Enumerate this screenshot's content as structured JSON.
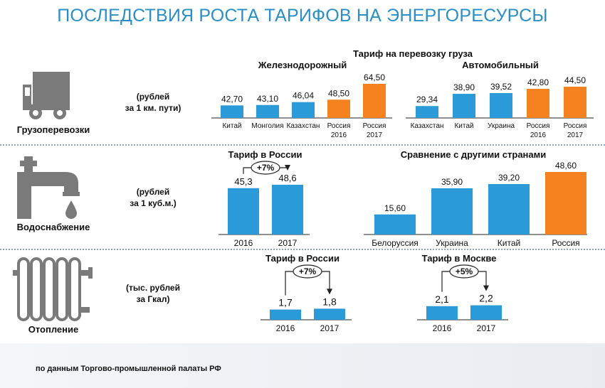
{
  "title": "ПОСЛЕДСТВИЯ РОСТА ТАРИФОВ НА ЭНЕРГОРЕСУРСЫ",
  "colors": {
    "blue": "#2a9ad8",
    "orange": "#f5821f",
    "title": "#2a8fc6",
    "icon": "#7a7a7a"
  },
  "source_note": "по данным Торгово-промышленной палаты РФ",
  "sections": {
    "freight": {
      "label": "Грузоперевозки",
      "unit": [
        "(рублей",
        "за 1 км. пути)"
      ],
      "icon": "truck-icon",
      "header": "Тариф на перевозку груза"
    },
    "water": {
      "label": "Водоснабжение",
      "unit": [
        "(рублей",
        "за 1 куб.м.)"
      ],
      "icon": "faucet-icon"
    },
    "heating": {
      "label": "Отопление",
      "unit": [
        "(тыс. рублей",
        "за Гкал)"
      ],
      "icon": "radiator-icon"
    }
  },
  "chart_data": [
    {
      "id": "rail",
      "type": "bar",
      "title": "Железнодорожный",
      "categories": [
        [
          "Китай"
        ],
        [
          "Монголия"
        ],
        [
          "Казахстан"
        ],
        [
          "Россия",
          "2016"
        ],
        [
          "Россия",
          "2017"
        ]
      ],
      "values": [
        42.7,
        43.1,
        46.04,
        48.5,
        64.5
      ],
      "labels": [
        "42,70",
        "43,10",
        "46,04",
        "48,50",
        "64,50"
      ],
      "highlight": [
        3,
        4
      ]
    },
    {
      "id": "road",
      "type": "bar",
      "title": "Автомобильный",
      "categories": [
        [
          "Казахстан"
        ],
        [
          "Китай"
        ],
        [
          "Украина"
        ],
        [
          "Россия",
          "2016"
        ],
        [
          "Россия",
          "2017"
        ]
      ],
      "values": [
        29.34,
        38.9,
        39.52,
        42.8,
        44.5
      ],
      "labels": [
        "29,34",
        "38,90",
        "39,52",
        "42,80",
        "44,50"
      ],
      "highlight": [
        3,
        4
      ]
    },
    {
      "id": "water-russia",
      "type": "bar",
      "title": "Тариф в России",
      "categories": [
        [
          "2016"
        ],
        [
          "2017"
        ]
      ],
      "values": [
        45.3,
        48.6
      ],
      "labels": [
        "45,3",
        "48,6"
      ],
      "change": "+7%",
      "highlight": []
    },
    {
      "id": "water-compare",
      "type": "bar",
      "title": "Сравнение с другими странами",
      "categories": [
        [
          "Белоруссия"
        ],
        [
          "Украина"
        ],
        [
          "Китай"
        ],
        [
          "Россия"
        ]
      ],
      "values": [
        15.6,
        35.9,
        39.2,
        48.6
      ],
      "labels": [
        "15,60",
        "35,90",
        "39,20",
        "48,60"
      ],
      "highlight": [
        3
      ]
    },
    {
      "id": "heat-russia",
      "type": "bar",
      "title": "Тариф в России",
      "categories": [
        [
          "2016"
        ],
        [
          "2017"
        ]
      ],
      "values": [
        1.7,
        1.8
      ],
      "labels": [
        "1,7",
        "1,8"
      ],
      "change": "+7%",
      "highlight": []
    },
    {
      "id": "heat-moscow",
      "type": "bar",
      "title": "Тариф в Москве",
      "categories": [
        [
          "2016"
        ],
        [
          "2017"
        ]
      ],
      "values": [
        2.1,
        2.2
      ],
      "labels": [
        "2,1",
        "2,2"
      ],
      "change": "+5%",
      "highlight": []
    }
  ]
}
